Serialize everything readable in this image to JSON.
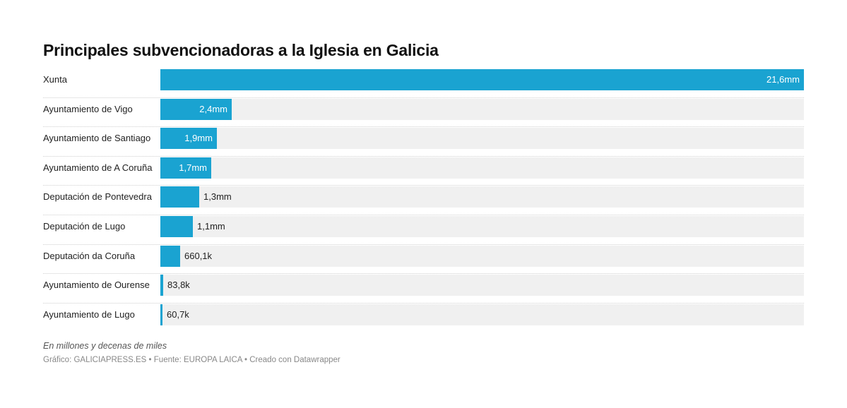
{
  "chart_data": {
    "type": "bar",
    "orientation": "horizontal",
    "title": "Principales subvencionadoras a la Iglesia en Galicia",
    "categories": [
      "Xunta",
      "Ayuntamiento de Vigo",
      "Ayuntamiento de Santiago",
      "Ayuntamiento de A Coruña",
      "Deputación de Pontevedra",
      "Deputación de Lugo",
      "Deputación da Coruña",
      "Ayuntamiento de Ourense",
      "Ayuntamiento de Lugo"
    ],
    "values": [
      21600000,
      2400000,
      1900000,
      1700000,
      1300000,
      1100000,
      660100,
      83800,
      60700
    ],
    "value_labels": [
      "21,6mm",
      "2,4mm",
      "1,9mm",
      "1,7mm",
      "1,3mm",
      "1,1mm",
      "660,1k",
      "83,8k",
      "60,7k"
    ],
    "xlim": [
      0,
      21600000
    ],
    "grid": false,
    "bar_color": "#1aa3d1",
    "track_color": "#f0f0f0"
  },
  "notes": "En millones y decenas de miles",
  "credits": "Gráfico: GALICIAPRESS.ES • Fuente: EUROPA LAICA • Creado con Datawrapper"
}
